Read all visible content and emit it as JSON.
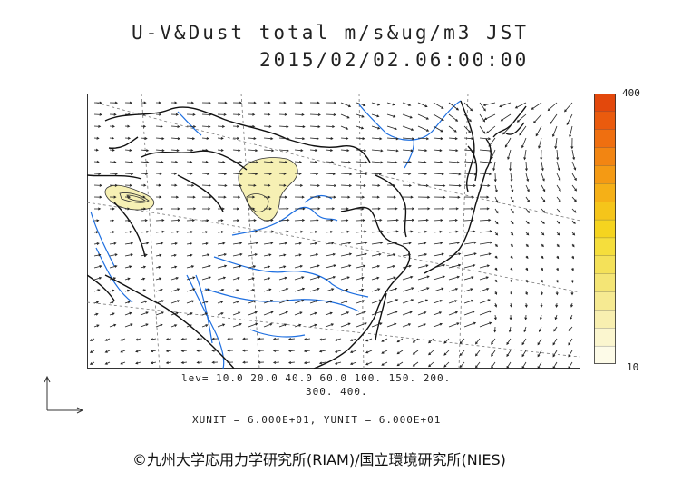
{
  "title": {
    "line1": "U-V&Dust total m/s&ug/m3 JST",
    "line2": "2015/02/02.06:00:00"
  },
  "colorbar": {
    "max_label": "400",
    "min_label": "10",
    "colors": [
      "#fdfbe8",
      "#fbf6cf",
      "#f8efb0",
      "#f6ea92",
      "#f4e575",
      "#f4e159",
      "#f5de3c",
      "#f5d41f",
      "#f5c51a",
      "#f5b017",
      "#f49a14",
      "#f28512",
      "#ef6f10",
      "#ea5b0e",
      "#e3480c"
    ]
  },
  "legend": {
    "levels_line1": "lev= 10.0 20.0 40.0 60.0 100. 150. 200.",
    "levels_line2": "300. 400.",
    "units": "XUNIT = 6.000E+01, YUNIT = 6.000E+01"
  },
  "copyright": "©九州大学応用力学研究所(RIAM)/国立環境研究所(NIES)",
  "map_data": {
    "type": "wind-vector-and-dust-contour",
    "dust_levels": [
      10,
      20,
      40,
      60,
      100,
      150,
      200,
      300,
      400
    ],
    "units": "m/s&ug/m3",
    "colors": {
      "coastline": "#111111",
      "rivers": "#1e6fe0",
      "vectors": "#222222",
      "dust_fill": "#f6f0b4",
      "graticule": "#777777"
    }
  }
}
